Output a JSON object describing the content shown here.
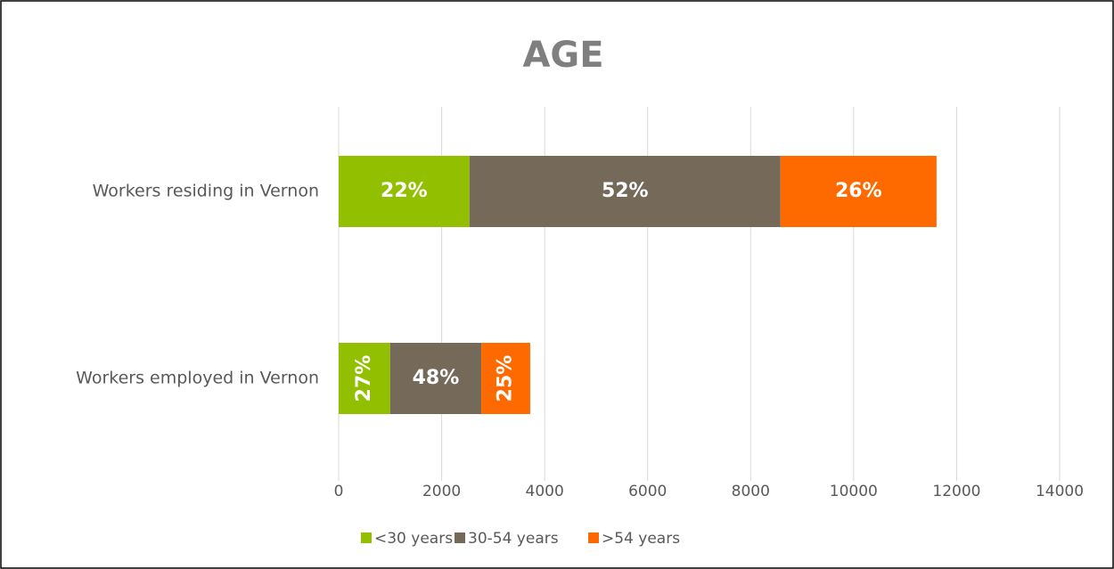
{
  "chart_data": {
    "type": "stacked_barh",
    "title": "AGE",
    "categories": [
      "Workers residing in Vernon",
      "Workers employed in Vernon"
    ],
    "series": [
      {
        "name": "<30 years",
        "color": "#92c000",
        "values": [
          2540,
          1000
        ],
        "data_labels": [
          "22%",
          "27%"
        ]
      },
      {
        "name": "30-54 years",
        "color": "#75695a",
        "values": [
          6040,
          1770
        ],
        "data_labels": [
          "52%",
          "48%"
        ]
      },
      {
        "name": ">54 years",
        "color": "#ff6a00",
        "values": [
          3030,
          950
        ],
        "data_labels": [
          "26%",
          "25%"
        ]
      }
    ],
    "xlim": [
      0,
      14000
    ],
    "xticks": [
      0,
      2000,
      4000,
      6000,
      8000,
      10000,
      12000,
      14000
    ],
    "grid": true,
    "legend": "bottom"
  }
}
